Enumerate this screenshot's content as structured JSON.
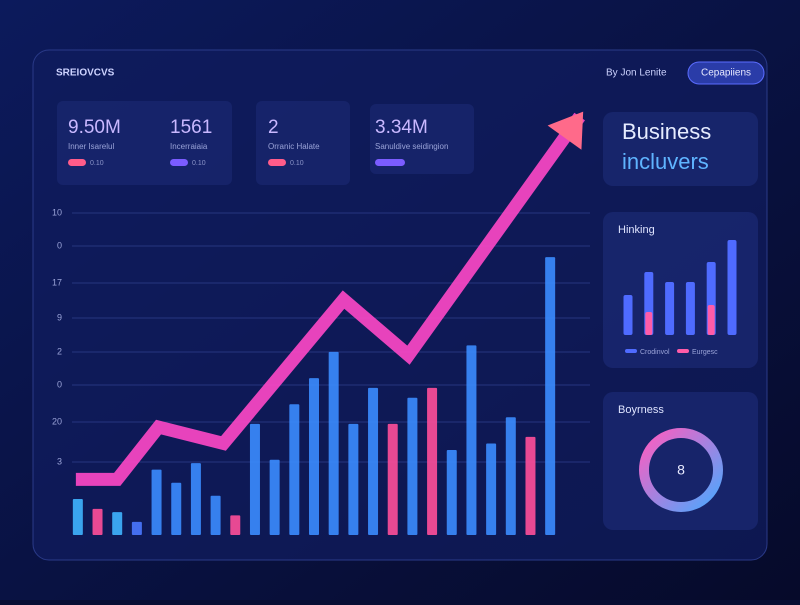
{
  "header": {
    "brand": "SREIOVCVS",
    "user": "By Jon Lenite",
    "button": "Cepapiiens"
  },
  "kpis": [
    {
      "value": "9.50M",
      "label": "Inner Isarelul",
      "chip": "0.10"
    },
    {
      "value": "1561",
      "label": "Incerraiaia",
      "chip": "0.10"
    },
    {
      "value": "2",
      "label": "Orranic Halate",
      "chip": "0.10"
    },
    {
      "value": "3.34M",
      "label": "Sanuldive seidingion"
    }
  ],
  "side": {
    "title": "Business",
    "subtitle": "incluvers",
    "donut_title": "Boyrness",
    "donut_center": "8"
  },
  "chart_data": [
    {
      "type": "bar",
      "y_labels": [
        "10",
        "0",
        "17",
        "9",
        "2",
        "0",
        "20",
        "3"
      ],
      "ylim": [
        0,
        130
      ],
      "xlim": [
        -0.5,
        24.5
      ],
      "values": [
        11,
        8,
        7,
        4,
        20,
        16,
        22,
        12,
        6,
        34,
        23,
        40,
        48,
        56,
        34,
        45,
        34,
        42,
        45,
        26,
        58,
        28,
        36,
        30,
        85
      ],
      "colors": [
        "#3fb4ff",
        "#ff4f9a",
        "#3fb4ff",
        "#4a78ff",
        "#3b8cff",
        "#3b8cff",
        "#3b8cff",
        "#3b8cff",
        "#ff4f9a",
        "#3b8cff",
        "#3b8cff",
        "#3b8cff",
        "#3b8cff",
        "#3b8cff",
        "#3b8cff",
        "#3b8cff",
        "#ff4f9a",
        "#3b8cff",
        "#ff4f9a",
        "#3b8cff",
        "#3b8cff",
        "#3b8cff",
        "#3b8cff",
        "#ff4f9a",
        "#3b8cff"
      ],
      "line": {
        "color": "#ff48c8",
        "x": [
          -0.1,
          2,
          4.1,
          7.4,
          13.5,
          16.8,
          25.5
        ],
        "values": [
          17,
          17,
          33,
          28,
          72,
          55,
          128
        ]
      }
    },
    {
      "type": "bar",
      "title": "Hinking",
      "ylim": [
        0,
        100
      ],
      "series": [
        {
          "name": "Crodinvol",
          "color": "#4f6bff",
          "values": [
            40,
            63,
            53,
            53,
            73,
            95
          ]
        },
        {
          "name": "Eurgesc",
          "color": "#ff5ca8",
          "values": [
            null,
            23,
            null,
            null,
            30,
            null
          ]
        }
      ]
    }
  ]
}
